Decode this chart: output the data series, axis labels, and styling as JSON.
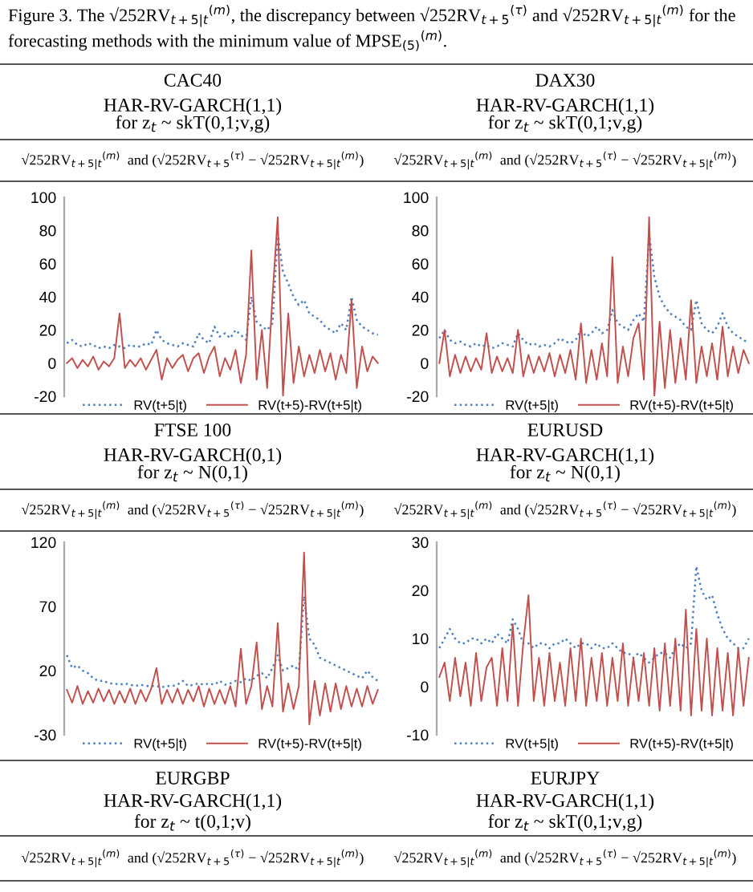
{
  "chart_data": [
    {
      "type": "line",
      "title": "CAC40",
      "subtitle": "HAR-RV-GARCH(1,1)\nfor z$_{t}$ ~ skT(0,1;v,g)",
      "ylabel": "√252RV$_{t+5|t}$$^{(m)}$  and (√252RV$_{t+5}$$^{(τ)}$ − √252RV$_{t+5|t}$$^{(m)}$)",
      "annotations": [
        "Figure 3. The √252RV$_{t+5|t}$$^{(m)}$, the discrepancy between √252RV$_{t+5}$$^{(τ)}$ and √252RV$_{t+5|t}$$^{(m)}$ for the forecasting methods with the minimum value of MPSE$_{(5)}$$^{(m)}$."
      ],
      "categories": [
        null,
        null,
        null,
        null,
        null,
        null,
        null,
        null,
        null,
        null,
        null,
        null,
        null,
        null,
        null,
        null,
        null,
        null,
        null,
        null,
        null,
        null,
        null,
        null,
        null,
        null,
        null,
        null,
        null,
        null,
        null,
        null,
        null,
        null,
        null,
        null,
        null,
        null,
        null,
        null,
        null,
        null,
        null,
        null,
        null,
        null,
        null,
        null,
        null,
        null,
        null,
        null,
        null,
        null,
        null,
        null,
        null,
        null,
        null,
        null
      ],
      "series": [
        {
          "name": "RV(t+5|t)",
          "color": "#4f81bd",
          "line_style": "dotted",
          "values": [
            12,
            14,
            11,
            10,
            12,
            11,
            9,
            10,
            9,
            11,
            10,
            9,
            11,
            10,
            10,
            12,
            11,
            20,
            14,
            12,
            11,
            10,
            12,
            11,
            10,
            18,
            14,
            12,
            22,
            16,
            18,
            15,
            20,
            17,
            14,
            40,
            25,
            22,
            20,
            24,
            78,
            55,
            48,
            40,
            35,
            38,
            30,
            28,
            26,
            22,
            20,
            18,
            24,
            20,
            40,
            26,
            22,
            20,
            18,
            17
          ]
        },
        {
          "name": "RV(t+5)-RV(t+5|t)",
          "color": "#c0504d",
          "line_style": "solid",
          "values": [
            0,
            3,
            -3,
            2,
            -2,
            4,
            -4,
            1,
            -2,
            3,
            30,
            -3,
            2,
            -2,
            3,
            -4,
            2,
            8,
            -10,
            3,
            -3,
            2,
            5,
            -5,
            3,
            6,
            -6,
            4,
            10,
            -8,
            3,
            -4,
            8,
            -12,
            5,
            68,
            -10,
            20,
            -15,
            40,
            88,
            -20,
            30,
            -12,
            10,
            -8,
            5,
            -6,
            8,
            -5,
            6,
            -10,
            5,
            -6,
            38,
            -15,
            10,
            -5,
            4,
            0
          ]
        }
      ],
      "ylim": [
        -20,
        100
      ],
      "yticks": [
        -20,
        0,
        20,
        40,
        60,
        80,
        100
      ],
      "tick_labels": "y",
      "grid": false,
      "legend": "bottom",
      "marker": "none"
    },
    {
      "type": "line",
      "title": "DAX30",
      "subtitle": "HAR-RV-GARCH(1,1)\nfor z$_{t}$ ~ skT(0,1;v,g)",
      "ylabel": "√252RV$_{t+5|t}$$^{(m)}$  and (√252RV$_{t+5}$$^{(τ)}$ − √252RV$_{t+5|t}$$^{(m)}$)",
      "categories": [
        null,
        null,
        null,
        null,
        null,
        null,
        null,
        null,
        null,
        null,
        null,
        null,
        null,
        null,
        null,
        null,
        null,
        null,
        null,
        null,
        null,
        null,
        null,
        null,
        null,
        null,
        null,
        null,
        null,
        null,
        null,
        null,
        null,
        null,
        null,
        null,
        null,
        null,
        null,
        null,
        null,
        null,
        null,
        null,
        null,
        null,
        null,
        null,
        null,
        null,
        null,
        null,
        null,
        null,
        null,
        null,
        null,
        null,
        null,
        null
      ],
      "series": [
        {
          "name": "RV(t+5|t)",
          "color": "#4f81bd",
          "line_style": "dotted",
          "values": [
            15,
            20,
            14,
            12,
            13,
            11,
            10,
            12,
            10,
            11,
            9,
            10,
            12,
            11,
            10,
            18,
            14,
            11,
            12,
            10,
            11,
            10,
            12,
            15,
            13,
            12,
            14,
            20,
            16,
            18,
            22,
            18,
            20,
            32,
            24,
            22,
            20,
            26,
            30,
            25,
            78,
            52,
            40,
            34,
            30,
            28,
            26,
            22,
            20,
            38,
            24,
            20,
            18,
            22,
            30,
            22,
            18,
            16,
            14,
            12
          ]
        },
        {
          "name": "RV(t+5)-RV(t+5|t)",
          "color": "#c0504d",
          "line_style": "solid",
          "values": [
            0,
            20,
            -8,
            5,
            -6,
            4,
            -5,
            3,
            -4,
            18,
            -6,
            4,
            -5,
            3,
            -6,
            20,
            -8,
            5,
            -6,
            4,
            -5,
            6,
            -8,
            5,
            -6,
            8,
            -10,
            24,
            -12,
            8,
            -10,
            12,
            -8,
            64,
            -12,
            10,
            -8,
            15,
            24,
            -10,
            88,
            -20,
            25,
            -15,
            20,
            -12,
            15,
            -10,
            38,
            -12,
            10,
            -8,
            12,
            -10,
            22,
            -8,
            10,
            -6,
            8,
            0
          ]
        }
      ],
      "ylim": [
        -20,
        100
      ],
      "yticks": [
        -20,
        0,
        20,
        40,
        60,
        80,
        100
      ],
      "tick_labels": "y",
      "grid": false,
      "legend": "bottom",
      "marker": "none"
    },
    {
      "type": "line",
      "title": "FTSE 100",
      "subtitle": "HAR-RV-GARCH(0,1)\nfor z$_{t}$ ~ N(0,1)",
      "ylabel": "√252RV$_{t+5|t}$$^{(m)}$  and (√252RV$_{t+5}$$^{(τ)}$ − √252RV$_{t+5|t}$$^{(m)}$)",
      "annotations": [
        "EURGBP",
        "HAR-RV-GARCH(1,1)",
        "for z$_{t}$ ~ t(0,1;v)",
        "√252RV$_{t+5|t}$$^{(m)}$  and (√252RV$_{t+5}$$^{(τ)}$ − √252RV$_{t+5|t}$$^{(m)}$)"
      ],
      "categories": [
        null,
        null,
        null,
        null,
        null,
        null,
        null,
        null,
        null,
        null,
        null,
        null,
        null,
        null,
        null,
        null,
        null,
        null,
        null,
        null,
        null,
        null,
        null,
        null,
        null,
        null,
        null,
        null,
        null,
        null,
        null,
        null,
        null,
        null,
        null,
        null,
        null,
        null,
        null,
        null,
        null,
        null,
        null,
        null,
        null,
        null,
        null,
        null,
        null,
        null,
        null,
        null,
        null,
        null,
        null,
        null,
        null,
        null,
        null,
        null
      ],
      "series": [
        {
          "name": "RV(t+5|t)",
          "color": "#4f81bd",
          "line_style": "dotted",
          "values": [
            32,
            22,
            24,
            20,
            18,
            14,
            12,
            12,
            10,
            10,
            9,
            10,
            9,
            8,
            9,
            8,
            8,
            8,
            7,
            8,
            8,
            9,
            12,
            8,
            9,
            10,
            9,
            10,
            9,
            12,
            9,
            10,
            12,
            11,
            14,
            12,
            16,
            18,
            14,
            22,
            32,
            20,
            22,
            24,
            20,
            78,
            45,
            40,
            30,
            28,
            26,
            24,
            22,
            20,
            18,
            16,
            14,
            20,
            15,
            12
          ]
        },
        {
          "name": "RV(t+5)-RV(t+5|t)",
          "color": "#c0504d",
          "line_style": "solid",
          "values": [
            5,
            -5,
            8,
            -6,
            4,
            -5,
            6,
            -4,
            5,
            -6,
            4,
            -5,
            6,
            -6,
            5,
            -4,
            6,
            22,
            -6,
            5,
            -5,
            6,
            -6,
            5,
            -4,
            8,
            -8,
            6,
            -6,
            5,
            -6,
            8,
            -8,
            37,
            -6,
            8,
            42,
            -10,
            8,
            -8,
            57,
            -12,
            10,
            -10,
            8,
            112,
            -22,
            12,
            -15,
            10,
            -12,
            10,
            -10,
            8,
            -8,
            6,
            -8,
            8,
            -6,
            5
          ]
        }
      ],
      "ylim": [
        -30,
        120
      ],
      "yticks": [
        -30,
        20,
        70,
        120
      ],
      "tick_labels": "y",
      "grid": false,
      "legend": "bottom",
      "marker": "none"
    },
    {
      "type": "line",
      "title": "EURUSD",
      "subtitle": "HAR-RV-GARCH(1,1)\nfor z$_{t}$ ~ N(0,1)",
      "ylabel": "√252RV$_{t+5|t}$$^{(m)}$  and (√252RV$_{t+5}$$^{(τ)}$ − √252RV$_{t+5|t}$$^{(m)}$)",
      "annotations": [
        "EURJPY",
        "HAR-RV-GARCH(1,1)",
        "for z$_{t}$ ~ skT(0,1;v,g)",
        "√252RV$_{t+5|t}$$^{(m)}$  and (√252RV$_{t+5}$$^{(τ)}$ − √252RV$_{t+5|t}$$^{(m)}$)"
      ],
      "categories": [
        null,
        null,
        null,
        null,
        null,
        null,
        null,
        null,
        null,
        null,
        null,
        null,
        null,
        null,
        null,
        null,
        null,
        null,
        null,
        null,
        null,
        null,
        null,
        null,
        null,
        null,
        null,
        null,
        null,
        null,
        null,
        null,
        null,
        null,
        null,
        null,
        null,
        null,
        null,
        null,
        null,
        null,
        null,
        null,
        null,
        null,
        null,
        null,
        null,
        null,
        null,
        null,
        null,
        null,
        null,
        null,
        null,
        null,
        null,
        null
      ],
      "series": [
        {
          "name": "RV(t+5|t)",
          "color": "#4f81bd",
          "line_style": "dotted",
          "values": [
            8,
            10,
            12,
            10,
            9,
            9,
            10,
            10,
            9,
            10,
            9,
            11,
            10,
            9,
            14,
            12,
            9,
            9,
            8,
            9,
            9,
            8,
            9,
            9,
            10,
            9,
            8,
            9,
            9,
            8,
            9,
            8,
            8,
            9,
            8,
            7,
            7,
            6,
            7,
            6,
            5,
            6,
            7,
            7,
            6,
            8,
            9,
            8,
            9,
            25,
            20,
            18,
            19,
            15,
            12,
            10,
            9,
            8,
            8,
            10
          ]
        },
        {
          "name": "RV(t+5)-RV(t+5|t)",
          "color": "#c0504d",
          "line_style": "solid",
          "values": [
            2,
            5,
            -3,
            6,
            -2,
            5,
            -4,
            7,
            -3,
            4,
            6,
            -4,
            8,
            -3,
            13,
            -4,
            9,
            19,
            -3,
            6,
            -4,
            7,
            -3,
            5,
            -4,
            8,
            -3,
            10,
            -4,
            6,
            -3,
            7,
            -4,
            6,
            -3,
            9,
            -4,
            6,
            -3,
            7,
            -4,
            8,
            -5,
            9,
            -4,
            10,
            -5,
            16,
            -6,
            12,
            -5,
            10,
            -6,
            8,
            -5,
            7,
            -6,
            8,
            -4,
            6
          ]
        }
      ],
      "ylim": [
        -10,
        30
      ],
      "yticks": [
        -10,
        0,
        10,
        20,
        30
      ],
      "tick_labels": "y",
      "grid": false,
      "legend": "bottom",
      "marker": "none"
    }
  ]
}
